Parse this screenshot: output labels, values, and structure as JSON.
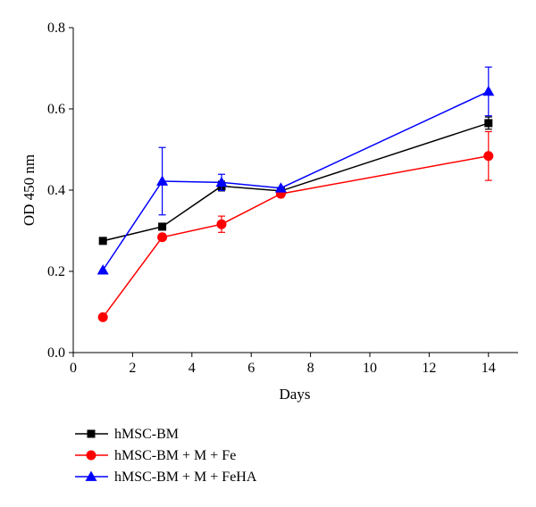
{
  "chart_data": {
    "type": "line",
    "xlabel": "Days",
    "ylabel": "OD 450 nm",
    "xlim": [
      0,
      15
    ],
    "ylim": [
      0.0,
      0.8
    ],
    "xticks": [
      0,
      2,
      4,
      6,
      8,
      10,
      12,
      14
    ],
    "yticks": [
      0.0,
      0.2,
      0.4,
      0.6,
      0.8
    ],
    "ytick_labels": [
      "0.0",
      "0.2",
      "0.4",
      "0.6",
      "0.8"
    ],
    "grid": false,
    "legend_position": "bottom-left",
    "series": [
      {
        "name": "hMSC-BM",
        "color": "#000000",
        "marker": "square",
        "x": [
          1,
          3,
          5,
          7,
          14
        ],
        "y": [
          0.275,
          0.31,
          0.41,
          0.398,
          0.565
        ],
        "err": [
          0.0,
          0.0,
          0.012,
          0.0,
          0.015
        ]
      },
      {
        "name": "hMSC-BM + M + Fe",
        "color": "#ff0000",
        "marker": "circle",
        "x": [
          1,
          3,
          5,
          7,
          14
        ],
        "y": [
          0.087,
          0.284,
          0.316,
          0.391,
          0.484
        ],
        "err": [
          0.0,
          0.0,
          0.02,
          0.0,
          0.06
        ]
      },
      {
        "name": "hMSC-BM + M + FeHA",
        "color": "#0000ff",
        "marker": "triangle",
        "x": [
          1,
          3,
          5,
          7,
          14
        ],
        "y": [
          0.203,
          0.422,
          0.419,
          0.405,
          0.643
        ],
        "err": [
          0.0,
          0.083,
          0.02,
          0.0,
          0.06
        ]
      }
    ]
  }
}
